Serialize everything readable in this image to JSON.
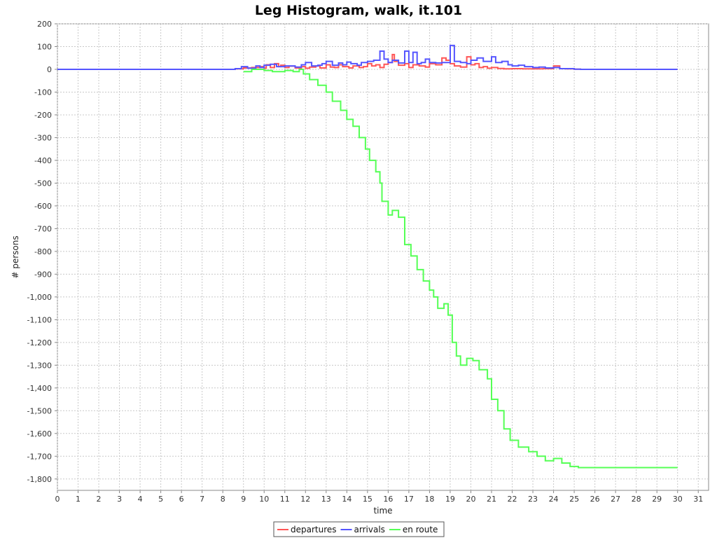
{
  "chart_data": {
    "type": "line",
    "title": "Leg Histogram, walk, it.101",
    "xlabel": "time",
    "ylabel": "# persons",
    "xlim": [
      0,
      31.5
    ],
    "ylim": [
      -1850,
      200
    ],
    "x_ticks": [
      0,
      1,
      2,
      3,
      4,
      5,
      6,
      7,
      8,
      9,
      10,
      11,
      12,
      13,
      14,
      15,
      16,
      17,
      18,
      19,
      20,
      21,
      22,
      23,
      24,
      25,
      26,
      27,
      28,
      29,
      30,
      31
    ],
    "y_ticks": [
      200,
      100,
      0,
      -100,
      -200,
      -300,
      -400,
      -500,
      -600,
      -700,
      -800,
      -900,
      -1000,
      -1100,
      -1200,
      -1300,
      -1400,
      -1500,
      -1600,
      -1700,
      -1800
    ],
    "y_tick_labels": [
      "200",
      "100",
      "0",
      "-100",
      "-200",
      "-300",
      "-400",
      "-500",
      "-600",
      "-700",
      "-800",
      "-900",
      "-1,000",
      "-1,100",
      "-1,200",
      "-1,300",
      "-1,400",
      "-1,500",
      "-1,600",
      "-1,700",
      "-1,800"
    ],
    "grid": true,
    "legend_position": "bottom-center",
    "series": [
      {
        "name": "departures",
        "color": "#ff5555",
        "step": true,
        "points": [
          [
            0,
            0
          ],
          [
            8.6,
            2
          ],
          [
            9,
            6
          ],
          [
            9.4,
            8
          ],
          [
            9.8,
            12
          ],
          [
            10,
            5
          ],
          [
            10.1,
            20
          ],
          [
            10.3,
            8
          ],
          [
            10.5,
            25
          ],
          [
            10.7,
            12
          ],
          [
            10.8,
            18
          ],
          [
            11,
            8
          ],
          [
            11.2,
            14
          ],
          [
            11.5,
            6
          ],
          [
            11.8,
            12
          ],
          [
            12,
            5
          ],
          [
            12.2,
            10
          ],
          [
            12.5,
            15
          ],
          [
            12.7,
            6
          ],
          [
            13,
            20
          ],
          [
            13.2,
            10
          ],
          [
            13.4,
            8
          ],
          [
            13.6,
            20
          ],
          [
            13.8,
            12
          ],
          [
            14.1,
            6
          ],
          [
            14.3,
            15
          ],
          [
            14.6,
            8
          ],
          [
            14.8,
            12
          ],
          [
            15,
            25
          ],
          [
            15.2,
            15
          ],
          [
            15.4,
            20
          ],
          [
            15.6,
            8
          ],
          [
            15.8,
            22
          ],
          [
            16,
            30
          ],
          [
            16.2,
            65
          ],
          [
            16.3,
            35
          ],
          [
            16.5,
            18
          ],
          [
            16.8,
            25
          ],
          [
            17,
            8
          ],
          [
            17.2,
            20
          ],
          [
            17.5,
            15
          ],
          [
            17.8,
            10
          ],
          [
            18,
            25
          ],
          [
            18.3,
            20
          ],
          [
            18.6,
            50
          ],
          [
            18.8,
            40
          ],
          [
            19,
            25
          ],
          [
            19.2,
            15
          ],
          [
            19.5,
            10
          ],
          [
            19.8,
            55
          ],
          [
            20,
            20
          ],
          [
            20.2,
            25
          ],
          [
            20.4,
            8
          ],
          [
            20.6,
            12
          ],
          [
            20.8,
            5
          ],
          [
            21,
            8
          ],
          [
            21.3,
            4
          ],
          [
            21.6,
            2
          ],
          [
            22,
            3
          ],
          [
            22.5,
            2
          ],
          [
            23,
            2
          ],
          [
            23.5,
            3
          ],
          [
            24,
            15
          ],
          [
            24.3,
            3
          ],
          [
            24.6,
            2
          ],
          [
            25,
            1
          ],
          [
            25.3,
            0
          ],
          [
            30,
            0
          ]
        ]
      },
      {
        "name": "arrivals",
        "color": "#5555ff",
        "step": true,
        "points": [
          [
            0,
            0
          ],
          [
            8.6,
            3
          ],
          [
            8.9,
            12
          ],
          [
            9.2,
            5
          ],
          [
            9.6,
            15
          ],
          [
            9.8,
            8
          ],
          [
            10,
            18
          ],
          [
            10.3,
            22
          ],
          [
            10.6,
            12
          ],
          [
            11,
            15
          ],
          [
            11.5,
            10
          ],
          [
            11.8,
            20
          ],
          [
            12,
            30
          ],
          [
            12.3,
            15
          ],
          [
            12.6,
            18
          ],
          [
            12.8,
            25
          ],
          [
            13,
            35
          ],
          [
            13.3,
            18
          ],
          [
            13.6,
            28
          ],
          [
            13.8,
            20
          ],
          [
            14,
            32
          ],
          [
            14.2,
            25
          ],
          [
            14.5,
            18
          ],
          [
            14.7,
            30
          ],
          [
            15,
            35
          ],
          [
            15.3,
            40
          ],
          [
            15.6,
            80
          ],
          [
            15.8,
            45
          ],
          [
            16,
            30
          ],
          [
            16.2,
            40
          ],
          [
            16.5,
            28
          ],
          [
            16.8,
            80
          ],
          [
            17,
            30
          ],
          [
            17.2,
            75
          ],
          [
            17.4,
            25
          ],
          [
            17.6,
            30
          ],
          [
            17.8,
            45
          ],
          [
            18,
            30
          ],
          [
            18.3,
            28
          ],
          [
            18.6,
            30
          ],
          [
            19,
            105
          ],
          [
            19.2,
            35
          ],
          [
            19.5,
            30
          ],
          [
            19.8,
            25
          ],
          [
            20,
            40
          ],
          [
            20.3,
            50
          ],
          [
            20.6,
            35
          ],
          [
            21,
            55
          ],
          [
            21.2,
            30
          ],
          [
            21.5,
            35
          ],
          [
            21.8,
            20
          ],
          [
            22,
            15
          ],
          [
            22.3,
            18
          ],
          [
            22.6,
            12
          ],
          [
            23,
            8
          ],
          [
            23.3,
            10
          ],
          [
            23.6,
            6
          ],
          [
            24,
            8
          ],
          [
            24.3,
            3
          ],
          [
            25,
            1
          ],
          [
            25.3,
            0
          ],
          [
            30,
            0
          ]
        ]
      },
      {
        "name": "en route",
        "color": "#55ff55",
        "step": true,
        "points": [
          [
            9,
            -10
          ],
          [
            9.4,
            0
          ],
          [
            10,
            -5
          ],
          [
            10.4,
            -10
          ],
          [
            11,
            -5
          ],
          [
            11.4,
            -10
          ],
          [
            11.7,
            0
          ],
          [
            11.9,
            -20
          ],
          [
            12.2,
            -45
          ],
          [
            12.6,
            -70
          ],
          [
            13,
            -100
          ],
          [
            13.3,
            -140
          ],
          [
            13.7,
            -180
          ],
          [
            14,
            -220
          ],
          [
            14.3,
            -250
          ],
          [
            14.6,
            -300
          ],
          [
            14.9,
            -350
          ],
          [
            15.1,
            -400
          ],
          [
            15.4,
            -450
          ],
          [
            15.6,
            -500
          ],
          [
            15.7,
            -580
          ],
          [
            16,
            -640
          ],
          [
            16.2,
            -620
          ],
          [
            16.5,
            -650
          ],
          [
            16.8,
            -770
          ],
          [
            17.1,
            -820
          ],
          [
            17.4,
            -880
          ],
          [
            17.7,
            -930
          ],
          [
            18,
            -970
          ],
          [
            18.2,
            -1000
          ],
          [
            18.4,
            -1050
          ],
          [
            18.7,
            -1030
          ],
          [
            18.9,
            -1080
          ],
          [
            19.1,
            -1200
          ],
          [
            19.3,
            -1260
          ],
          [
            19.5,
            -1300
          ],
          [
            19.8,
            -1270
          ],
          [
            20.1,
            -1280
          ],
          [
            20.4,
            -1320
          ],
          [
            20.8,
            -1360
          ],
          [
            21,
            -1450
          ],
          [
            21.3,
            -1500
          ],
          [
            21.6,
            -1580
          ],
          [
            21.9,
            -1630
          ],
          [
            22.3,
            -1660
          ],
          [
            22.8,
            -1680
          ],
          [
            23.2,
            -1700
          ],
          [
            23.6,
            -1720
          ],
          [
            24,
            -1710
          ],
          [
            24.4,
            -1730
          ],
          [
            24.8,
            -1745
          ],
          [
            25.2,
            -1750
          ],
          [
            30,
            -1750
          ]
        ]
      }
    ]
  }
}
